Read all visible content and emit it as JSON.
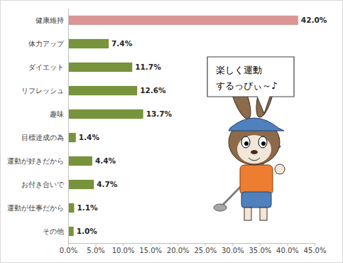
{
  "chart_data": {
    "type": "bar",
    "orientation": "horizontal",
    "categories": [
      "健康維持",
      "体力アップ",
      "ダイエット",
      "リフレッシュ",
      "趣味",
      "目標達成の為",
      "運動が好きだから",
      "お付き合いで",
      "運動が仕事だから",
      "その他"
    ],
    "values": [
      42.0,
      7.4,
      11.7,
      12.6,
      13.7,
      1.4,
      4.4,
      4.7,
      1.1,
      1.0
    ],
    "value_labels": [
      "42.0%",
      "7.4%",
      "11.7%",
      "12.6%",
      "13.7%",
      "1.4%",
      "4.4%",
      "4.7%",
      "1.1%",
      "1.0%"
    ],
    "colors": [
      "#d99694",
      "#77933c",
      "#77933c",
      "#77933c",
      "#77933c",
      "#77933c",
      "#77933c",
      "#77933c",
      "#77933c",
      "#77933c"
    ],
    "xlim": [
      0,
      45
    ],
    "xticks": [
      {
        "value": 0,
        "label": "0.0%"
      },
      {
        "value": 5,
        "label": "5.0%"
      },
      {
        "value": 10,
        "label": "10.0%"
      },
      {
        "value": 15,
        "label": "15.0%"
      },
      {
        "value": 20,
        "label": "20.0%"
      },
      {
        "value": 25,
        "label": "25.0%"
      },
      {
        "value": 30,
        "label": "30.0%"
      },
      {
        "value": 35,
        "label": "35.0%"
      },
      {
        "value": 40,
        "label": "40.0%"
      },
      {
        "value": 45,
        "label": "45.0%"
      }
    ],
    "grid": false,
    "data_labels": true,
    "annotations": [
      "楽しく運動",
      "するっぴぃ～♪"
    ]
  }
}
